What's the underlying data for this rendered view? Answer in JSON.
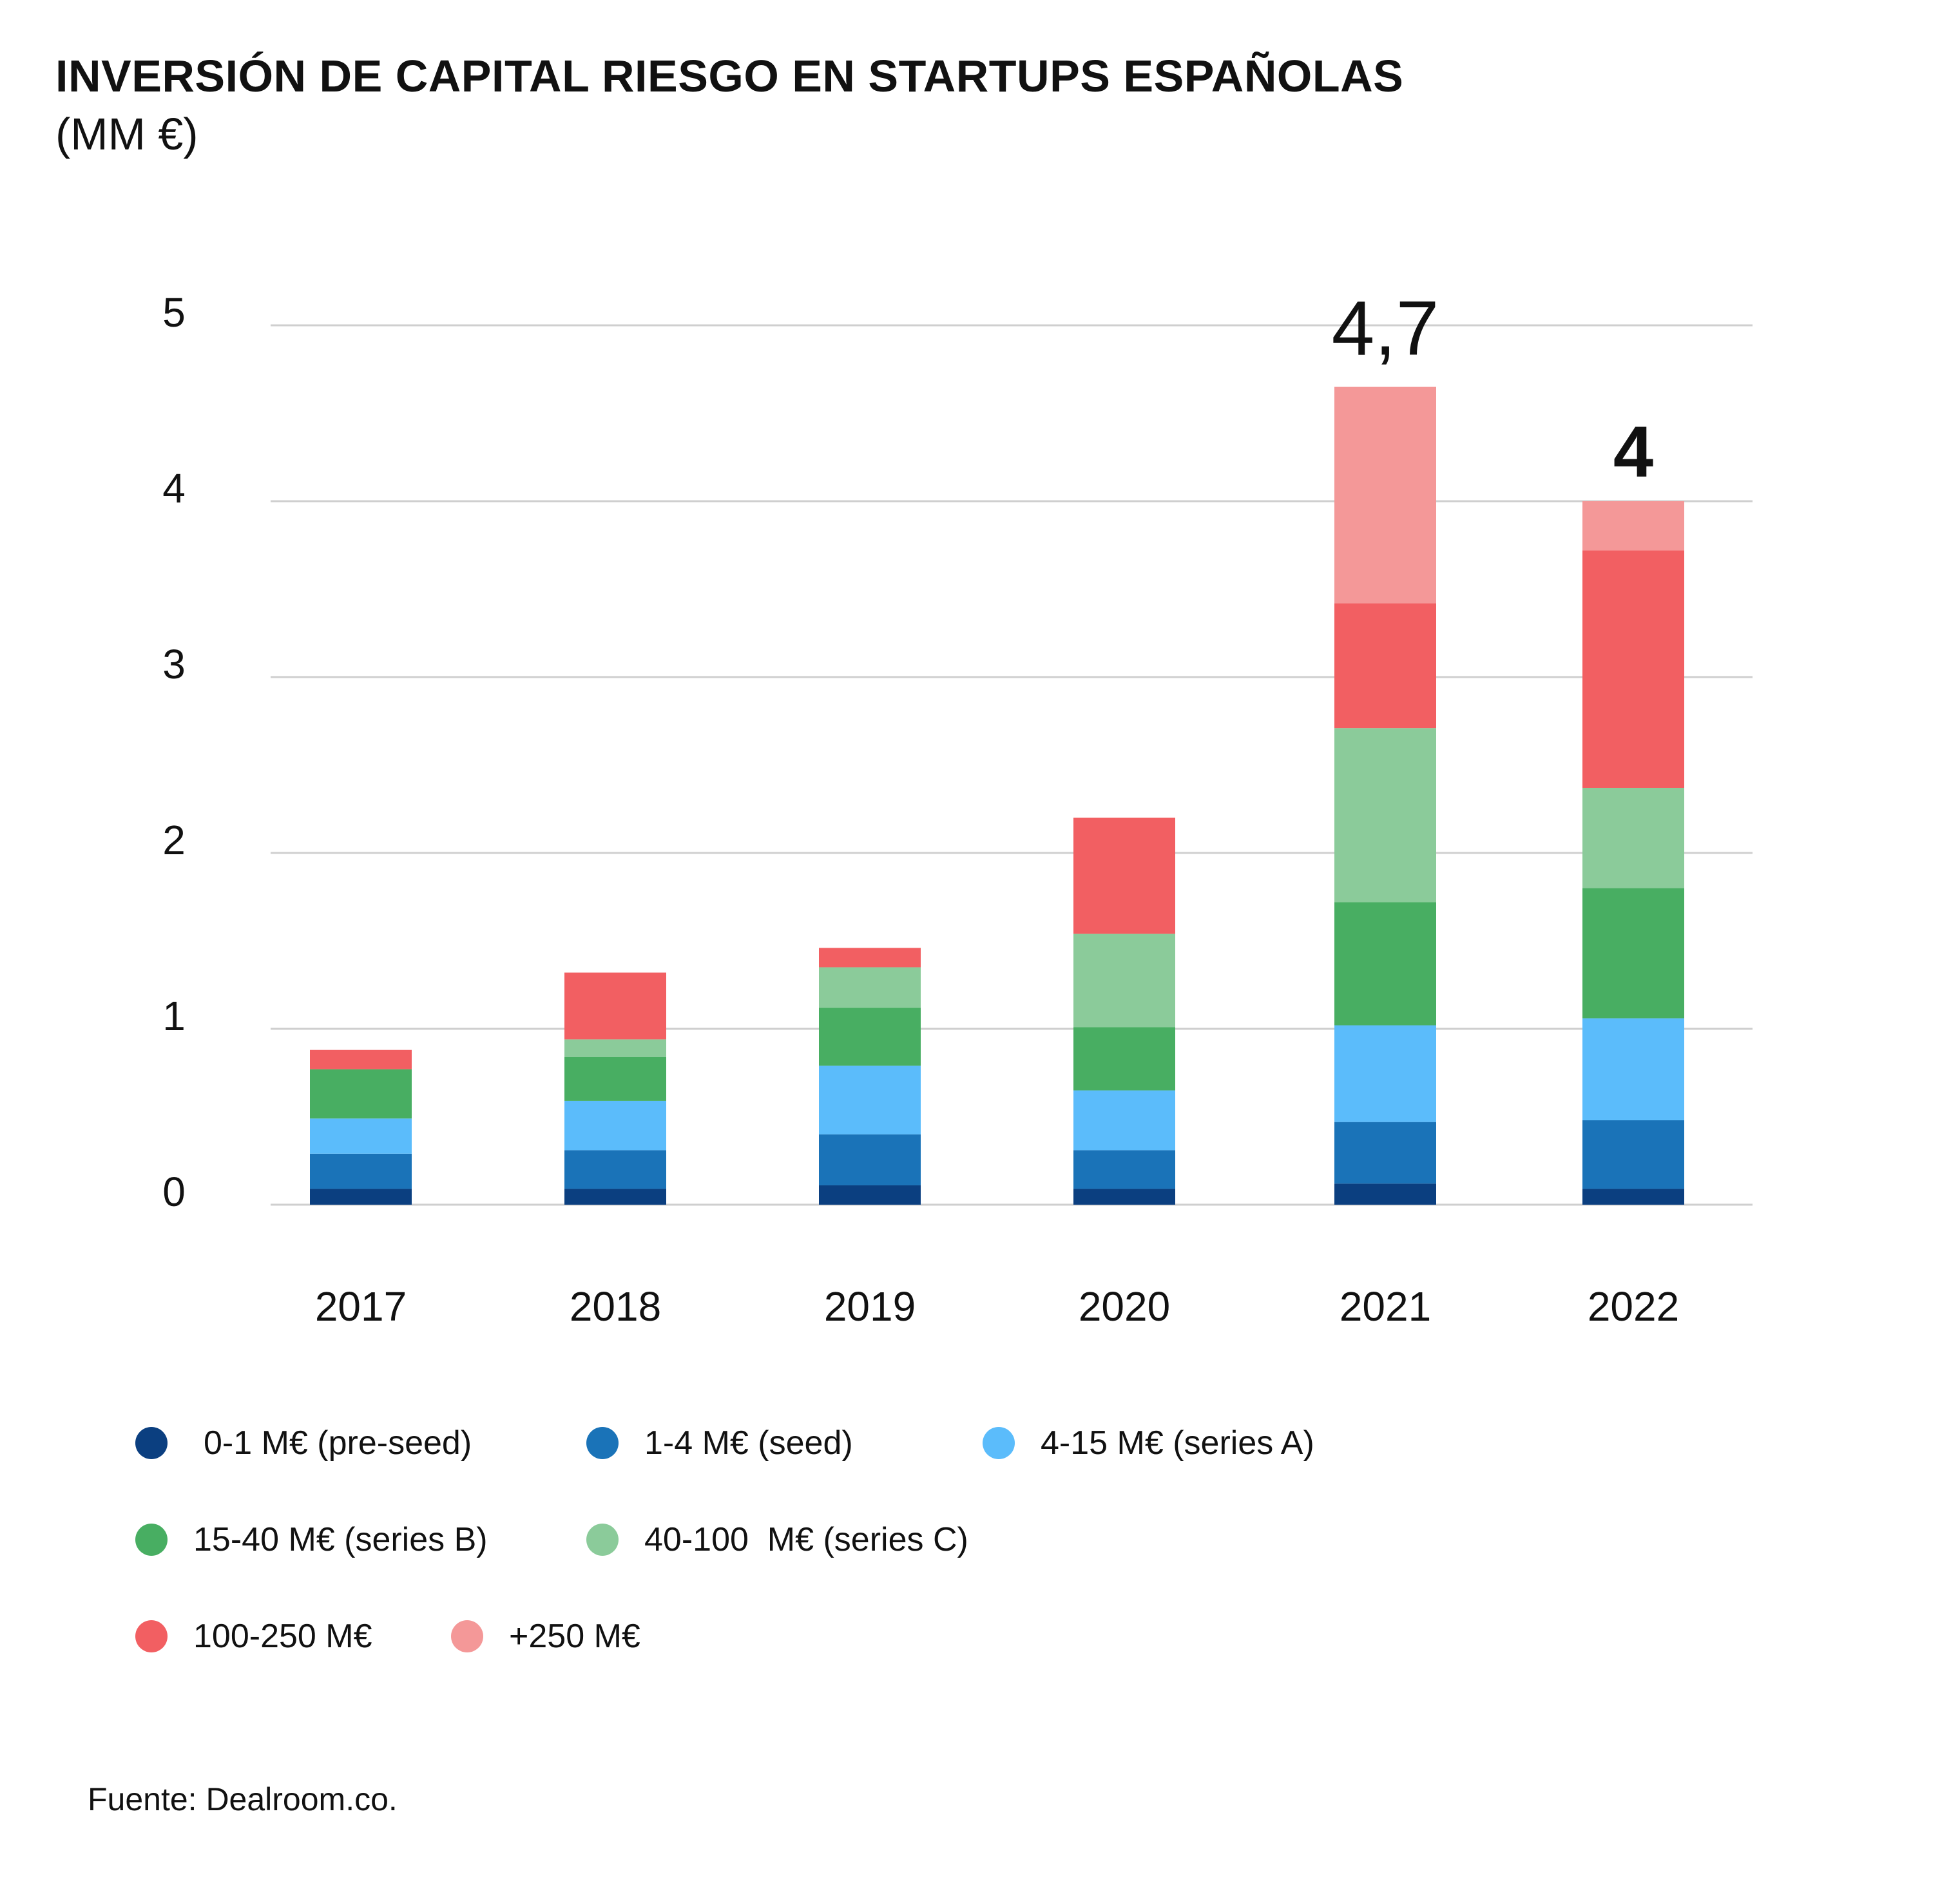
{
  "chart_data": {
    "type": "bar",
    "stacked": true,
    "title": "INVERSIÓN DE CAPITAL RIESGO EN STARTUPS ESPAÑOLAS",
    "subtitle": "(MM €)",
    "categories": [
      "2017",
      "2018",
      "2019",
      "2020",
      "2021",
      "2022"
    ],
    "ylim": [
      0,
      5
    ],
    "yticks": [
      0,
      1,
      2,
      3,
      4,
      5
    ],
    "grid": true,
    "series": [
      {
        "name": "0-1 M€ (pre-seed)",
        "color": "#0b3f80",
        "values": [
          0.09,
          0.09,
          0.11,
          0.09,
          0.12,
          0.09
        ]
      },
      {
        "name": "1-4 M€ (seed)",
        "color": "#1a73b8",
        "values": [
          0.2,
          0.22,
          0.29,
          0.22,
          0.35,
          0.39
        ]
      },
      {
        "name": "4-15 M€ (series A)",
        "color": "#5bbcfb",
        "values": [
          0.2,
          0.28,
          0.39,
          0.34,
          0.55,
          0.58
        ]
      },
      {
        "name": "15-40 M€ (series B)",
        "color": "#48ae62",
        "values": [
          0.28,
          0.25,
          0.33,
          0.36,
          0.7,
          0.74
        ]
      },
      {
        "name": "40-100  M€ (series C)",
        "color": "#8bcb9a",
        "values": [
          0.0,
          0.1,
          0.23,
          0.53,
          0.99,
          0.57
        ]
      },
      {
        "name": "100-250 M€",
        "color": "#f25f62",
        "values": [
          0.11,
          0.38,
          0.11,
          0.66,
          0.71,
          1.35
        ]
      },
      {
        "name": "+250 M€",
        "color": "#f49898",
        "values": [
          0.0,
          0.0,
          0.0,
          0.0,
          1.23,
          0.28
        ]
      }
    ],
    "annotations": [
      {
        "category": "2021",
        "text": "4,7",
        "bold": false
      },
      {
        "category": "2022",
        "text": "4",
        "bold": true
      }
    ],
    "source": "Fuente: Dealroom.co."
  }
}
